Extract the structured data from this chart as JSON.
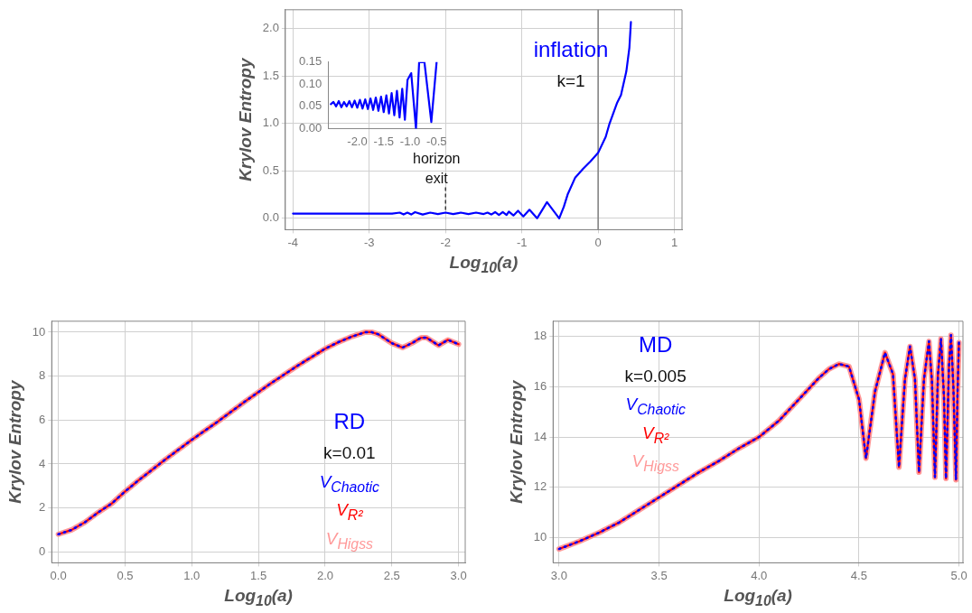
{
  "chart_data": [
    {
      "type": "line",
      "xlabel": "Log$_{10}$(a)",
      "ylabel": "Krylov Entropy",
      "grid": true,
      "legend": false,
      "xlim": [
        -4.1,
        1.1
      ],
      "ylim": [
        -0.12,
        2.2
      ],
      "xticks": [
        -4,
        -3,
        -2,
        -1,
        0,
        1
      ],
      "yticks": [
        {
          "value": 0,
          "label": "0.0"
        },
        {
          "value": 0.5,
          "label": "0.5"
        },
        {
          "value": 1,
          "label": "1.0"
        },
        {
          "value": 1.5,
          "label": "1.5"
        },
        {
          "value": 2,
          "label": "2.0"
        }
      ],
      "annotations": [
        "inflation",
        "k=1",
        {
          "text": "horizon exit",
          "x": -2,
          "y": 0.05
        }
      ],
      "ref_lines": [
        {
          "axis": "x",
          "value": 0,
          "color": "#808080"
        }
      ],
      "x": [
        -4,
        -3.5,
        -3,
        -2.7,
        -2.6,
        -2.55,
        -2.5,
        -2.45,
        -2.4,
        -2.3,
        -2.2,
        -2.1,
        -2,
        -1.9,
        -1.8,
        -1.7,
        -1.6,
        -1.5,
        -1.45,
        -1.4,
        -1.35,
        -1.3,
        -1.25,
        -1.2,
        -1.17,
        -1.11,
        -1.05,
        -0.98,
        -0.9,
        -0.8,
        -0.67,
        -0.51,
        -0.45,
        -0.4,
        -0.3,
        -0.2,
        -0.1,
        0,
        0.1,
        0.15,
        0.25,
        0.3,
        0.37,
        0.41,
        0.43
      ],
      "series": [
        {
          "color": "#0000ff",
          "line_style": "solid",
          "values": [
            0.05,
            0.05,
            0.05,
            0.05,
            0.06,
            0.04,
            0.06,
            0.04,
            0.065,
            0.04,
            0.06,
            0.045,
            0.06,
            0.045,
            0.06,
            0.045,
            0.06,
            0.045,
            0.06,
            0.04,
            0.065,
            0.035,
            0.065,
            0.035,
            0.07,
            0.03,
            0.08,
            0.02,
            0.09,
            0.0,
            0.17,
            0.0,
            0.12,
            0.25,
            0.43,
            0.52,
            0.6,
            0.69,
            0.86,
            1.0,
            1.22,
            1.3,
            1.55,
            1.8,
            2.07
          ]
        }
      ]
    },
    {
      "type": "line",
      "grid": false,
      "legend": false,
      "xlim": [
        -2.55,
        -0.42
      ],
      "ylim": [
        0,
        0.15
      ],
      "xticks": [
        {
          "value": -2,
          "label": "-2.0"
        },
        {
          "value": -1.5,
          "label": "-1.5"
        },
        {
          "value": -1,
          "label": "-1.0"
        },
        {
          "value": -0.5,
          "label": "-0.5"
        }
      ],
      "yticks": [
        {
          "value": 0,
          "label": "0.00"
        },
        {
          "value": 0.05,
          "label": "0.05"
        },
        {
          "value": 0.1,
          "label": "0.10"
        },
        {
          "value": 0.15,
          "label": "0.15"
        }
      ],
      "x": [
        -2.5,
        -2.45,
        -2.4,
        -2.35,
        -2.3,
        -2.25,
        -2.2,
        -2.15,
        -2.1,
        -2.05,
        -2.0,
        -1.95,
        -1.9,
        -1.85,
        -1.8,
        -1.75,
        -1.7,
        -1.65,
        -1.6,
        -1.55,
        -1.5,
        -1.45,
        -1.4,
        -1.35,
        -1.3,
        -1.25,
        -1.2,
        -1.15,
        -1.1,
        -1.05,
        -0.98,
        -0.89,
        -0.83,
        -0.73,
        -0.6,
        -0.5
      ],
      "series": [
        {
          "color": "#0000ff",
          "line_style": "solid",
          "values": [
            0.055,
            0.06,
            0.05,
            0.062,
            0.048,
            0.06,
            0.05,
            0.062,
            0.048,
            0.063,
            0.047,
            0.065,
            0.045,
            0.066,
            0.044,
            0.068,
            0.042,
            0.07,
            0.04,
            0.072,
            0.037,
            0.075,
            0.034,
            0.08,
            0.03,
            0.085,
            0.025,
            0.09,
            0.02,
            0.11,
            0.125,
            0.0,
            0.15,
            0.15,
            0.015,
            0.15
          ]
        }
      ]
    },
    {
      "type": "line",
      "xlabel": "Log$_{10}$(a)",
      "ylabel": "Krylov Entropy",
      "grid": true,
      "legend": "right",
      "xlim": [
        -0.05,
        3.05
      ],
      "ylim": [
        -0.5,
        10.5
      ],
      "xticks": [
        {
          "value": 0,
          "label": "0.0"
        },
        {
          "value": 0.5,
          "label": "0.5"
        },
        {
          "value": 1,
          "label": "1.0"
        },
        {
          "value": 1.5,
          "label": "1.5"
        },
        {
          "value": 2,
          "label": "2.0"
        },
        {
          "value": 2.5,
          "label": "2.5"
        },
        {
          "value": 3,
          "label": "3.0"
        }
      ],
      "yticks": [
        0,
        2,
        4,
        6,
        8,
        10
      ],
      "annotations": [
        "RD",
        "k=0.01"
      ],
      "x": [
        0,
        0.1,
        0.2,
        0.3,
        0.4,
        0.5,
        0.6,
        0.8,
        1.0,
        1.2,
        1.4,
        1.6,
        1.8,
        2.0,
        2.1,
        2.2,
        2.3,
        2.35,
        2.4,
        2.5,
        2.58,
        2.65,
        2.72,
        2.76,
        2.85,
        2.92,
        3.0
      ],
      "series": [
        {
          "name": "V$_{Chaotic}$",
          "color": "#0000ff",
          "line_style": "dotted",
          "values": [
            0.8,
            1.0,
            1.35,
            1.8,
            2.2,
            2.75,
            3.25,
            4.2,
            5.1,
            5.95,
            6.85,
            7.7,
            8.5,
            9.25,
            9.55,
            9.8,
            10.0,
            10.0,
            9.9,
            9.5,
            9.3,
            9.5,
            9.75,
            9.75,
            9.4,
            9.65,
            9.45
          ]
        },
        {
          "name": "V$_{R²}$",
          "color": "#ff0000",
          "line_style": "solid",
          "values": [
            0.8,
            1.0,
            1.35,
            1.8,
            2.2,
            2.75,
            3.25,
            4.2,
            5.1,
            5.95,
            6.85,
            7.7,
            8.5,
            9.25,
            9.55,
            9.8,
            10.0,
            10.0,
            9.9,
            9.5,
            9.3,
            9.5,
            9.75,
            9.75,
            9.4,
            9.65,
            9.45
          ]
        },
        {
          "name": "V$_{Higss}$",
          "color": "#ff9999",
          "line_style": "solid",
          "values": [
            0.8,
            1.0,
            1.35,
            1.8,
            2.2,
            2.75,
            3.25,
            4.2,
            5.1,
            5.95,
            6.85,
            7.7,
            8.5,
            9.25,
            9.55,
            9.8,
            10.0,
            10.0,
            9.9,
            9.5,
            9.3,
            9.5,
            9.75,
            9.75,
            9.4,
            9.65,
            9.45
          ]
        }
      ]
    },
    {
      "type": "line",
      "xlabel": "Log$_{10}$(a)",
      "ylabel": "Krylov Entropy",
      "grid": true,
      "legend": "top left",
      "xlim": [
        2.97,
        5.02
      ],
      "ylim": [
        9,
        18.6
      ],
      "xticks": [
        {
          "value": 3,
          "label": "3.0"
        },
        {
          "value": 3.5,
          "label": "3.5"
        },
        {
          "value": 4,
          "label": "4.0"
        },
        {
          "value": 4.5,
          "label": "4.5"
        },
        {
          "value": 5,
          "label": "5.0"
        }
      ],
      "yticks": [
        10,
        12,
        14,
        16,
        18
      ],
      "annotations": [
        "MD",
        "k=0.005"
      ],
      "x": [
        3.0,
        3.1,
        3.2,
        3.3,
        3.4,
        3.5,
        3.6,
        3.7,
        3.8,
        3.9,
        4.0,
        4.1,
        4.2,
        4.3,
        4.35,
        4.4,
        4.45,
        4.5,
        4.535,
        4.58,
        4.63,
        4.67,
        4.7,
        4.73,
        4.755,
        4.78,
        4.8,
        4.825,
        4.85,
        4.865,
        4.88,
        4.895,
        4.91,
        4.925,
        4.935,
        4.95,
        4.96,
        4.972,
        4.985,
        4.993,
        5.0
      ],
      "series": [
        {
          "name": "V$_{Chaotic}$",
          "color": "#0000ff",
          "line_style": "dotted",
          "values": [
            9.55,
            9.85,
            10.2,
            10.6,
            11.1,
            11.6,
            12.1,
            12.6,
            13.05,
            13.55,
            14.0,
            14.65,
            15.5,
            16.35,
            16.7,
            16.9,
            16.8,
            15.5,
            13.15,
            15.8,
            17.35,
            16.5,
            12.8,
            16.3,
            17.6,
            16.3,
            12.6,
            16.3,
            17.8,
            16.2,
            12.4,
            16.5,
            17.9,
            15.6,
            12.35,
            16.8,
            18.05,
            16.0,
            12.3,
            15.8,
            17.75
          ]
        },
        {
          "name": "V$_{R²}$",
          "color": "#ff0000",
          "line_style": "solid",
          "values": [
            9.55,
            9.85,
            10.2,
            10.6,
            11.1,
            11.6,
            12.1,
            12.6,
            13.05,
            13.55,
            14.0,
            14.65,
            15.5,
            16.35,
            16.7,
            16.9,
            16.8,
            15.5,
            13.15,
            15.8,
            17.35,
            16.5,
            12.8,
            16.3,
            17.6,
            16.3,
            12.6,
            16.3,
            17.8,
            16.2,
            12.4,
            16.5,
            17.9,
            15.6,
            12.35,
            16.8,
            18.05,
            16.0,
            12.3,
            15.8,
            17.75
          ]
        },
        {
          "name": "V$_{Higss}$",
          "color": "#ff9999",
          "line_style": "solid",
          "values": [
            9.55,
            9.85,
            10.2,
            10.6,
            11.1,
            11.6,
            12.1,
            12.6,
            13.05,
            13.55,
            14.0,
            14.65,
            15.5,
            16.35,
            16.7,
            16.9,
            16.8,
            15.5,
            13.15,
            15.8,
            17.35,
            16.5,
            12.8,
            16.3,
            17.6,
            16.3,
            12.6,
            16.3,
            17.8,
            16.2,
            12.4,
            16.5,
            17.9,
            15.6,
            12.35,
            16.8,
            18.05,
            16.0,
            12.3,
            15.8,
            17.75
          ]
        }
      ]
    }
  ]
}
